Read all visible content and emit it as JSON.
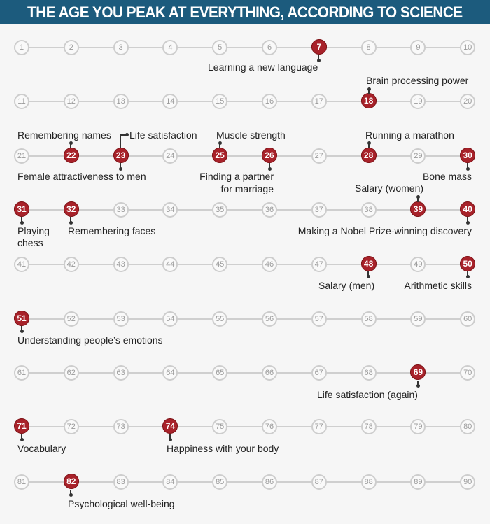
{
  "title": "THE AGE YOU PEAK AT EVERYTHING, ACCORDING TO SCIENCE",
  "colors": {
    "header_bg": "#1c5b7d",
    "peak": "#a8222a",
    "node_border": "#cdcdcd",
    "line": "#cfcfcf"
  },
  "rows": [
    {
      "start": 1
    },
    {
      "start": 11
    },
    {
      "start": 21
    },
    {
      "start": 31
    },
    {
      "start": 41
    },
    {
      "start": 51
    },
    {
      "start": 61
    },
    {
      "start": 71
    },
    {
      "start": 81
    }
  ],
  "peaks": [
    7,
    18,
    22,
    23,
    25,
    26,
    28,
    30,
    31,
    32,
    39,
    40,
    48,
    50,
    51,
    69,
    71,
    74,
    82
  ],
  "labels": {
    "l7": "Learning a new language",
    "l18": "Brain processing power",
    "l22a": "Remembering names",
    "l23a": "Life satisfaction",
    "l25": "Muscle strength",
    "l28": "Running a marathon",
    "l22b": "Female attractiveness to men",
    "l26a": "Finding a partner",
    "l26b": "for marriage",
    "l30": "Bone mass",
    "l39": "Salary (women)",
    "l31a": "Playing",
    "l31b": "chess",
    "l32": "Remembering faces",
    "l40": "Making a Nobel Prize-winning discovery",
    "l48": "Salary (men)",
    "l50": "Arithmetic skills",
    "l51": "Understanding people’s emotions",
    "l69": "Life satisfaction (again)",
    "l71": "Vocabulary",
    "l74": "Happiness with your body",
    "l82": "Psychological well-being"
  },
  "chart_data": {
    "type": "table",
    "title": "THE AGE YOU PEAK AT EVERYTHING, ACCORDING TO SCIENCE",
    "x_range": [
      1,
      90
    ],
    "layout": "9 rows of 10 ages each",
    "peaks": [
      {
        "age": 7,
        "label": "Learning a new language"
      },
      {
        "age": 18,
        "label": "Brain processing power"
      },
      {
        "age": 22,
        "label": "Remembering names"
      },
      {
        "age": 23,
        "label": "Life satisfaction"
      },
      {
        "age": 23,
        "label": "Female attractiveness to men"
      },
      {
        "age": 25,
        "label": "Muscle strength"
      },
      {
        "age": 26,
        "label": "Finding a partner for marriage"
      },
      {
        "age": 28,
        "label": "Running a marathon"
      },
      {
        "age": 30,
        "label": "Bone mass"
      },
      {
        "age": 31,
        "label": "Playing chess"
      },
      {
        "age": 32,
        "label": "Remembering faces"
      },
      {
        "age": 39,
        "label": "Salary (women)"
      },
      {
        "age": 40,
        "label": "Making a Nobel Prize-winning discovery"
      },
      {
        "age": 48,
        "label": "Salary (men)"
      },
      {
        "age": 50,
        "label": "Arithmetic skills"
      },
      {
        "age": 51,
        "label": "Understanding people’s emotions"
      },
      {
        "age": 69,
        "label": "Life satisfaction (again)"
      },
      {
        "age": 71,
        "label": "Vocabulary"
      },
      {
        "age": 74,
        "label": "Happiness with your body"
      },
      {
        "age": 82,
        "label": "Psychological well-being"
      }
    ]
  }
}
